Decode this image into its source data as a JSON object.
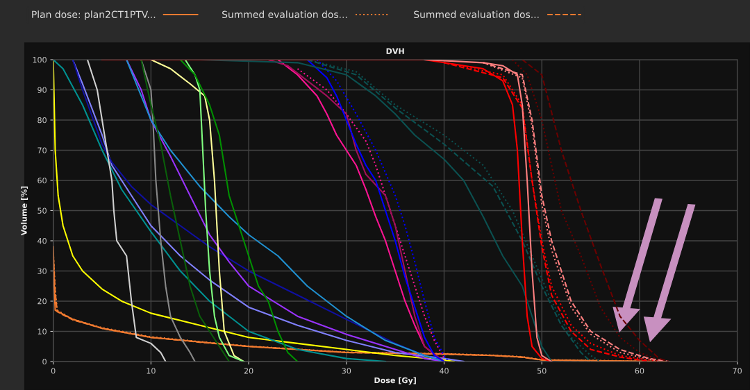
{
  "chart_data": {
    "type": "line",
    "title": "DVH",
    "xlabel": "Dose [Gy]",
    "ylabel": "Volume [%]",
    "xlim": [
      0,
      70
    ],
    "ylim": [
      0,
      100
    ],
    "xticks": [
      0,
      10,
      20,
      30,
      40,
      50,
      60,
      70
    ],
    "yticks": [
      0,
      10,
      20,
      30,
      40,
      50,
      60,
      70,
      80,
      90,
      100
    ],
    "grid": true,
    "legend": "top",
    "series": [
      {
        "name": "Plan dose: plan2CT1PTV...",
        "color": "#f07a30",
        "line_style": "solid",
        "x": [
          0,
          0.1,
          0.2,
          2,
          5,
          10,
          15,
          20,
          25,
          30,
          40,
          45,
          48,
          50,
          55,
          63
        ],
        "values": [
          38,
          25,
          17,
          14,
          11,
          8,
          6.5,
          5,
          4,
          3,
          2.5,
          2,
          1.5,
          0.5,
          0.3,
          0
        ]
      },
      {
        "name": "Summed evaluation dos...",
        "color": "#f07a30",
        "line_style": "dotted",
        "x": [
          0,
          0.2,
          0.4,
          2,
          5,
          10,
          15,
          20,
          25,
          30,
          40,
          45,
          48,
          50,
          55,
          62
        ],
        "values": [
          36,
          24,
          17,
          14,
          11.2,
          8.2,
          6.6,
          5.1,
          4.1,
          3.1,
          2.6,
          2.1,
          1.6,
          0.6,
          0.4,
          0
        ]
      },
      {
        "name": "Summed evaluation dos...",
        "color": "#f07a30",
        "line_style": "dashed",
        "x": [
          0,
          0.2,
          0.4,
          2,
          5,
          10,
          15,
          20,
          25,
          30,
          40,
          45,
          48,
          50,
          55,
          61
        ],
        "values": [
          35,
          23,
          16.5,
          13.8,
          11,
          8,
          6.4,
          5,
          4,
          3,
          2.4,
          2,
          1.4,
          0.5,
          0.3,
          0
        ]
      },
      {
        "color": "#ffff00",
        "line_style": "solid",
        "x": [
          0,
          0.2,
          0.5,
          1,
          2,
          3,
          5,
          7,
          10,
          15,
          20,
          25,
          30,
          35,
          40,
          41
        ],
        "values": [
          100,
          70,
          55,
          45,
          35,
          30,
          24,
          20,
          16,
          12,
          8,
          6,
          4,
          2,
          0.5,
          0
        ]
      },
      {
        "color": "#009090",
        "line_style": "solid",
        "x": [
          0,
          1,
          3,
          5,
          7,
          10,
          13,
          16,
          20,
          25,
          30,
          34
        ],
        "values": [
          100,
          97,
          85,
          70,
          57,
          43,
          30,
          20,
          10,
          4,
          1,
          0
        ]
      },
      {
        "color": "#8080ff",
        "line_style": "solid",
        "x": [
          2,
          3,
          5,
          6,
          8,
          10,
          13,
          16,
          20,
          25,
          30,
          35,
          40,
          42
        ],
        "values": [
          100,
          92,
          75,
          65,
          55,
          45,
          35,
          27,
          18,
          12,
          7,
          3,
          1,
          0
        ]
      },
      {
        "color": "#1010a0",
        "line_style": "solid",
        "x": [
          2,
          3,
          5,
          6,
          8,
          10,
          13,
          16,
          20,
          25,
          30,
          35,
          38,
          40
        ],
        "values": [
          100,
          90,
          72,
          66,
          58,
          52,
          45,
          38,
          30,
          22,
          14,
          6,
          2,
          0
        ]
      },
      {
        "color": "#d0d0d0",
        "line_style": "solid",
        "x": [
          3.5,
          4.5,
          5,
          5.5,
          6,
          6.2,
          6.5,
          7.5,
          8,
          8.5,
          10,
          11,
          11.5
        ],
        "values": [
          100,
          90,
          80,
          70,
          60,
          50,
          40,
          35,
          20,
          8,
          6,
          3,
          0
        ]
      },
      {
        "color": "#888888",
        "line_style": "solid",
        "x": [
          9,
          10,
          10.2,
          10.5,
          11,
          11.5,
          12,
          13,
          14,
          14.5
        ],
        "values": [
          100,
          90,
          80,
          60,
          40,
          25,
          15,
          8,
          3,
          0
        ]
      },
      {
        "color": "#9933ff",
        "line_style": "solid",
        "x": [
          7.5,
          9,
          10,
          12,
          14,
          16,
          18,
          20,
          25,
          30,
          35,
          38,
          40
        ],
        "values": [
          100,
          90,
          80,
          68,
          55,
          42,
          33,
          25,
          15,
          9,
          4,
          1,
          0
        ]
      },
      {
        "color": "#2090d0",
        "line_style": "solid",
        "x": [
          7.5,
          9,
          10,
          12,
          15,
          18,
          20,
          23,
          26,
          30,
          34,
          38,
          40
        ],
        "values": [
          100,
          88,
          80,
          70,
          58,
          48,
          42,
          35,
          25,
          15,
          7,
          2,
          0
        ]
      },
      {
        "color": "#0a5f0a",
        "line_style": "solid",
        "x": [
          9,
          10,
          11,
          12,
          13,
          14,
          15,
          16,
          17,
          18
        ],
        "values": [
          100,
          85,
          72,
          55,
          40,
          25,
          15,
          10,
          5,
          0
        ]
      },
      {
        "color": "#ffff99",
        "line_style": "solid",
        "x": [
          10,
          12,
          14,
          15.5,
          16,
          16.5,
          17,
          17.5,
          18.5,
          19.5
        ],
        "values": [
          100,
          97,
          92,
          88,
          80,
          60,
          30,
          10,
          2,
          0
        ]
      },
      {
        "color": "#80ff80",
        "line_style": "solid",
        "x": [
          13.5,
          14.5,
          15,
          15.3,
          15.6,
          16,
          16.5,
          17,
          18,
          19.5
        ],
        "values": [
          100,
          95,
          90,
          70,
          50,
          30,
          15,
          8,
          2,
          0
        ]
      },
      {
        "color": "#009000",
        "line_style": "solid",
        "x": [
          13,
          14.5,
          16,
          17,
          17.5,
          18,
          19,
          20,
          21,
          22,
          23,
          24,
          25
        ],
        "values": [
          100,
          95,
          85,
          75,
          65,
          55,
          45,
          35,
          25,
          20,
          10,
          3,
          0
        ]
      },
      {
        "color": "#ff1493",
        "line_style": "solid",
        "x": [
          23,
          25,
          27,
          28,
          29,
          30,
          31,
          32,
          33,
          34,
          35,
          36,
          37,
          38,
          39.5,
          40
        ],
        "values": [
          100,
          95,
          88,
          82,
          75,
          70,
          65,
          57,
          48,
          40,
          30,
          20,
          12,
          5,
          1,
          0
        ]
      },
      {
        "color": "#ff1493",
        "line_style": "dotted",
        "x": [
          25,
          28,
          30,
          32,
          33,
          34,
          35,
          36,
          37,
          38,
          39,
          40
        ],
        "values": [
          97,
          90,
          82,
          73,
          65,
          55,
          45,
          35,
          25,
          15,
          7,
          1
        ]
      },
      {
        "color": "#a0105a",
        "line_style": "solid",
        "x": [
          22,
          24,
          26,
          28,
          30,
          31,
          32,
          34,
          35,
          36,
          37,
          38,
          40
        ],
        "values": [
          100,
          98,
          93,
          88,
          82,
          70,
          62,
          55,
          45,
          30,
          15,
          5,
          0
        ]
      },
      {
        "color": "#0000ff",
        "line_style": "solid",
        "x": [
          26,
          28,
          29,
          30,
          31,
          32,
          33,
          34,
          35,
          36,
          37,
          38,
          39,
          40
        ],
        "values": [
          100,
          94,
          88,
          80,
          72,
          65,
          60,
          50,
          40,
          28,
          18,
          8,
          2,
          0
        ]
      },
      {
        "color": "#0000ff",
        "line_style": "dotted",
        "x": [
          27,
          29,
          31,
          33,
          35,
          36,
          37,
          38,
          39,
          40,
          40.5
        ],
        "values": [
          100,
          93,
          82,
          70,
          55,
          45,
          33,
          20,
          8,
          2,
          0
        ]
      },
      {
        "color": "#0b5050",
        "line_style": "solid",
        "x": [
          15,
          25,
          30,
          33,
          35,
          37,
          40,
          42,
          44,
          46,
          48,
          49,
          50,
          51
        ],
        "values": [
          100,
          99,
          95,
          88,
          82,
          75,
          67,
          60,
          48,
          35,
          25,
          15,
          5,
          0
        ]
      },
      {
        "color": "#0b5050",
        "line_style": "dotted",
        "x": [
          26,
          31,
          35,
          40,
          44,
          47,
          49,
          51,
          53,
          55,
          56
        ],
        "values": [
          100,
          96,
          85,
          75,
          65,
          50,
          35,
          20,
          8,
          2,
          0
        ]
      },
      {
        "color": "#0b5050",
        "line_style": "dashed",
        "x": [
          26,
          31,
          35,
          40,
          45,
          48,
          50,
          52,
          54,
          55
        ],
        "values": [
          100,
          95,
          84,
          72,
          58,
          40,
          25,
          12,
          3,
          0
        ]
      },
      {
        "color": "#ff0000",
        "line_style": "solid",
        "x": [
          5,
          38,
          40,
          44,
          46,
          47,
          47.5,
          48,
          48.5,
          49,
          50,
          51
        ],
        "values": [
          100,
          100,
          99,
          97,
          93,
          85,
          70,
          40,
          15,
          5,
          1,
          0
        ]
      },
      {
        "color": "#ff0000",
        "line_style": "dotted",
        "x": [
          40,
          46,
          48,
          49,
          50,
          51,
          53,
          55,
          58,
          62
        ],
        "values": [
          99,
          95,
          85,
          60,
          40,
          25,
          12,
          6,
          2,
          0
        ]
      },
      {
        "color": "#ff0000",
        "line_style": "dashed",
        "x": [
          40,
          46,
          48,
          49,
          50,
          51,
          53,
          55,
          58,
          61
        ],
        "values": [
          99,
          94,
          84,
          60,
          38,
          22,
          10,
          4,
          1.5,
          0
        ]
      },
      {
        "color": "#ff8080",
        "line_style": "solid",
        "x": [
          38,
          44,
          46,
          47.5,
          48,
          48.5,
          49,
          49.5,
          50,
          51
        ],
        "values": [
          100,
          99,
          98,
          95,
          85,
          60,
          30,
          8,
          2,
          0
        ]
      },
      {
        "color": "#ff8080",
        "line_style": "dashed",
        "x": [
          44,
          48,
          49,
          50,
          51,
          53,
          55,
          58,
          61,
          63
        ],
        "values": [
          99,
          95,
          80,
          55,
          40,
          20,
          10,
          4,
          1,
          0
        ]
      },
      {
        "color": "#ff8080",
        "line_style": "dotted",
        "x": [
          44,
          48,
          49,
          50,
          51,
          53,
          55,
          58,
          61,
          62
        ],
        "values": [
          99,
          94,
          78,
          52,
          37,
          18,
          9,
          3,
          0.8,
          0
        ]
      },
      {
        "color": "#6a0000",
        "line_style": "dotted",
        "x": [
          47,
          48.5,
          50,
          51,
          52,
          54,
          56,
          58,
          60,
          62
        ],
        "values": [
          100,
          95,
          80,
          65,
          50,
          35,
          18,
          8,
          3,
          0.5
        ]
      },
      {
        "color": "#6a0000",
        "line_style": "dashed",
        "x": [
          48,
          50,
          52,
          54,
          56,
          58,
          60,
          62,
          63
        ],
        "values": [
          100,
          95,
          70,
          50,
          32,
          15,
          7,
          1,
          0
        ]
      }
    ]
  }
}
